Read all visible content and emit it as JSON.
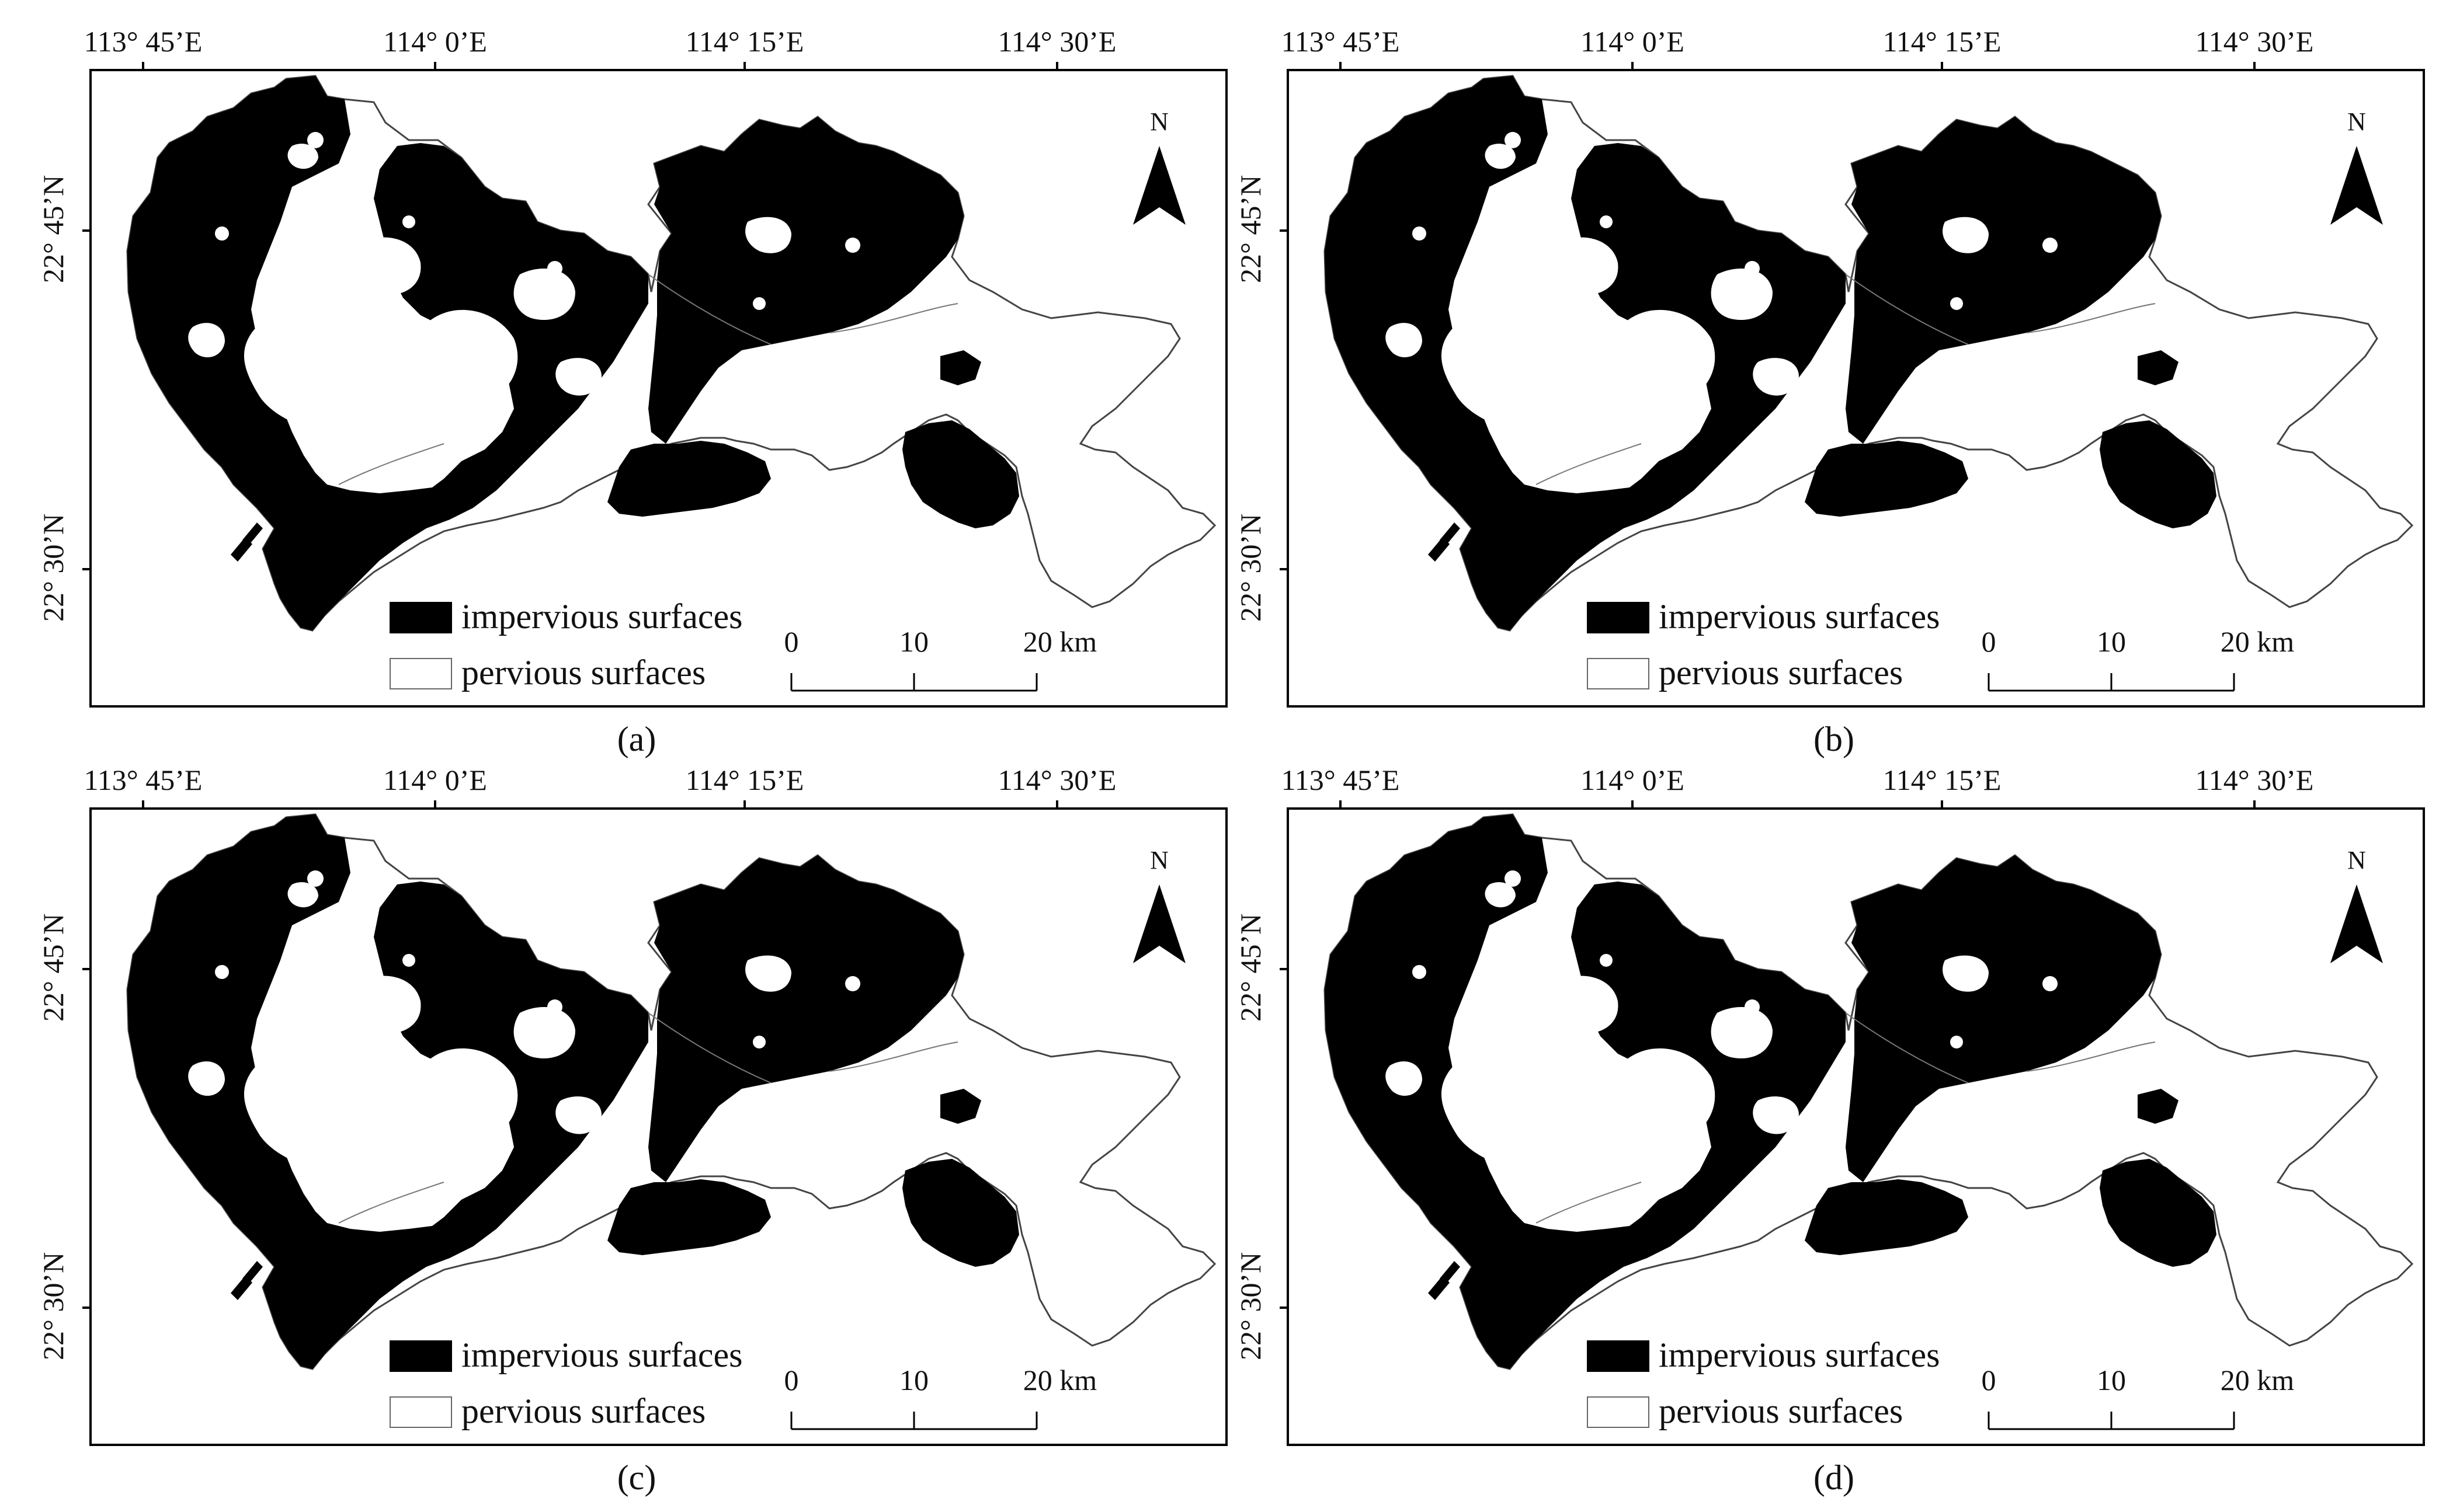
{
  "longitude_labels": [
    "113° 45’E",
    "114° 0’E",
    "114° 15’E",
    "114° 30’E"
  ],
  "latitude_labels": [
    "22° 45’N",
    "22° 30’N"
  ],
  "north_arrow_label": "N",
  "legend": {
    "impervious": "impervious surfaces",
    "pervious": "pervious surfaces"
  },
  "scale_bar": {
    "labels": [
      "0",
      "10",
      "20 km"
    ]
  },
  "colors": {
    "impervious": "#000000",
    "pervious": "#ffffff",
    "frame": "#000000"
  },
  "panels": [
    {
      "caption": "(a)"
    },
    {
      "caption": "(b)"
    },
    {
      "caption": "(c)"
    },
    {
      "caption": "(d)"
    }
  ]
}
